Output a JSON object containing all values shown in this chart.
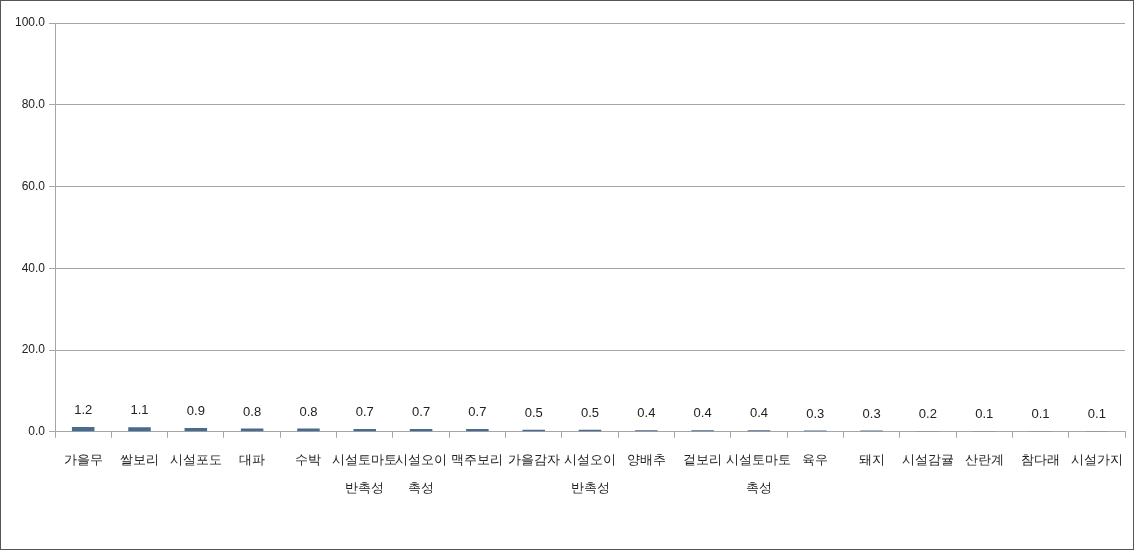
{
  "chart_data": {
    "type": "bar",
    "categories": [
      "가을무",
      "쌀보리",
      "시설포도",
      "대파",
      "수박",
      "시설토마토 반촉성",
      "시설오이 촉성",
      "맥주보리",
      "가을감자",
      "시설오이 반촉성",
      "양배추",
      "겉보리",
      "시설토마토 촉성",
      "육우",
      "돼지",
      "시설감귤",
      "산란계",
      "참다래",
      "시설가지"
    ],
    "values": [
      1.2,
      1.1,
      0.9,
      0.8,
      0.8,
      0.7,
      0.7,
      0.7,
      0.5,
      0.5,
      0.4,
      0.4,
      0.4,
      0.3,
      0.3,
      0.2,
      0.1,
      0.1,
      0.1
    ],
    "color": "#4a6a8e",
    "ylim": [
      0,
      100
    ],
    "yticks": [
      {
        "value": 0,
        "label": "0.0"
      },
      {
        "value": 20,
        "label": "20.0"
      },
      {
        "value": 40,
        "label": "40.0"
      },
      {
        "value": 60,
        "label": "60.0"
      },
      {
        "value": 80,
        "label": "80.0"
      },
      {
        "value": 100,
        "label": "100.0"
      }
    ],
    "grid": "y",
    "data_labels": true
  }
}
